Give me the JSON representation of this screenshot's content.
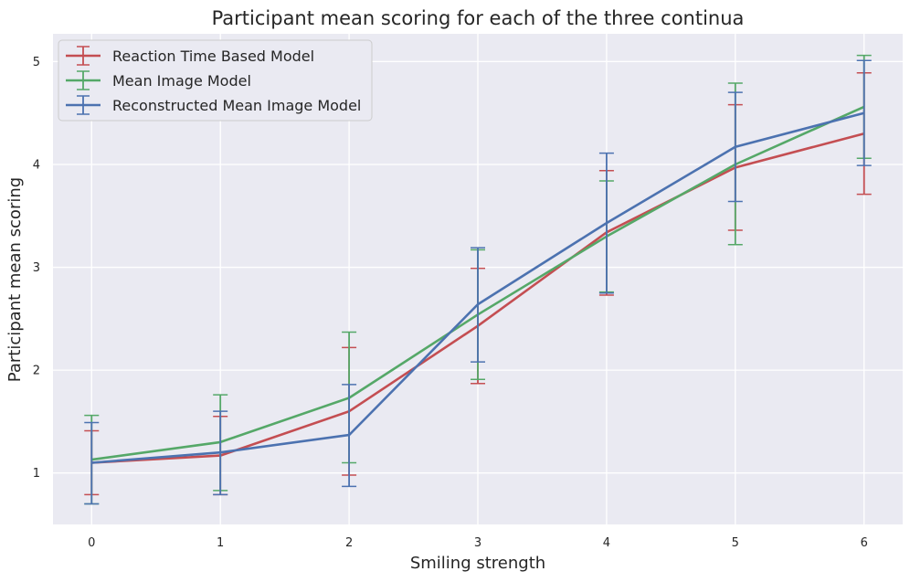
{
  "chart_data": {
    "type": "line",
    "title": "Participant mean scoring for each of the three continua",
    "xlabel": "Smiling strength",
    "ylabel": "Participant mean scoring",
    "x": [
      0,
      1,
      2,
      3,
      4,
      5,
      6
    ],
    "xlim": [
      -0.3,
      6.3
    ],
    "ylim": [
      0.5,
      5.27
    ],
    "xticks": [
      "0",
      "1",
      "2",
      "3",
      "4",
      "5",
      "6"
    ],
    "yticks": [
      "1",
      "2",
      "3",
      "4",
      "5"
    ],
    "grid": true,
    "legend_position": "top-left",
    "series": [
      {
        "name": "Reaction Time Based Model",
        "color": "#c44e52",
        "values": [
          1.1,
          1.17,
          1.6,
          2.43,
          3.34,
          3.97,
          4.3
        ],
        "err_low": [
          0.79,
          0.79,
          0.98,
          1.87,
          2.73,
          3.36,
          3.71
        ],
        "err_high": [
          1.41,
          1.55,
          2.22,
          2.99,
          3.94,
          4.58,
          4.89
        ]
      },
      {
        "name": "Mean Image Model",
        "color": "#55a868",
        "values": [
          1.13,
          1.3,
          1.73,
          2.54,
          3.3,
          4.0,
          4.56
        ],
        "err_low": [
          0.7,
          0.83,
          1.1,
          1.91,
          2.76,
          3.22,
          4.06
        ],
        "err_high": [
          1.56,
          1.76,
          2.37,
          3.17,
          3.84,
          4.79,
          5.06
        ]
      },
      {
        "name": "Reconstructed Mean Image Model",
        "color": "#4c72b0",
        "values": [
          1.1,
          1.2,
          1.37,
          2.64,
          3.43,
          4.17,
          4.5
        ],
        "err_low": [
          0.7,
          0.79,
          0.87,
          2.08,
          2.75,
          3.64,
          3.99
        ],
        "err_high": [
          1.49,
          1.6,
          1.86,
          3.19,
          4.11,
          4.7,
          5.01
        ]
      }
    ]
  }
}
